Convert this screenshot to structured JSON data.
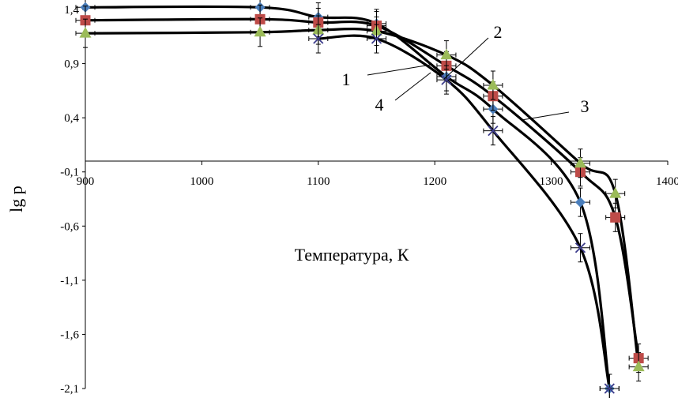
{
  "chart_data": {
    "type": "scatter",
    "xlabel": "Температура, К",
    "ylabel": "lg p",
    "xlim": [
      900,
      1400
    ],
    "ylim": [
      -2.1,
      1.4
    ],
    "x_ticks": [
      "900",
      "1000",
      "1100",
      "1200",
      "1300",
      "1400"
    ],
    "y_ticks": [
      "1,4",
      "0,9",
      "0,4",
      "-0,1",
      "-0,6",
      "-1,1",
      "-1,6",
      "-2,1"
    ],
    "grid": false,
    "series": [
      {
        "name": "1",
        "marker": "diamond",
        "color": "#4a7ebb",
        "points": [
          [
            900,
            1.42
          ],
          [
            1050,
            1.42
          ],
          [
            1100,
            1.33
          ],
          [
            1150,
            1.27
          ],
          [
            1210,
            0.78
          ],
          [
            1250,
            0.48
          ],
          [
            1325,
            -0.38
          ],
          [
            1350,
            -2.1
          ]
        ]
      },
      {
        "name": "2",
        "marker": "square",
        "color": "#be4b48",
        "points": [
          [
            900,
            1.3
          ],
          [
            1050,
            1.31
          ],
          [
            1100,
            1.28
          ],
          [
            1150,
            1.25
          ],
          [
            1210,
            0.88
          ],
          [
            1250,
            0.6
          ],
          [
            1325,
            -0.1
          ],
          [
            1355,
            -0.52
          ],
          [
            1375,
            -1.82
          ]
        ]
      },
      {
        "name": "3",
        "marker": "triangle",
        "color": "#9bbb59",
        "points": [
          [
            900,
            1.18
          ],
          [
            1050,
            1.19
          ],
          [
            1100,
            1.21
          ],
          [
            1150,
            1.2
          ],
          [
            1210,
            0.98
          ],
          [
            1250,
            0.7
          ],
          [
            1325,
            -0.02
          ],
          [
            1355,
            -0.3
          ],
          [
            1375,
            -1.9
          ]
        ]
      },
      {
        "name": "4",
        "marker": "x",
        "color": "#3c3c8c",
        "points": [
          [
            1100,
            1.13
          ],
          [
            1150,
            1.13
          ],
          [
            1210,
            0.75
          ],
          [
            1250,
            0.28
          ],
          [
            1325,
            -0.8
          ],
          [
            1350,
            -2.1
          ]
        ]
      }
    ]
  }
}
